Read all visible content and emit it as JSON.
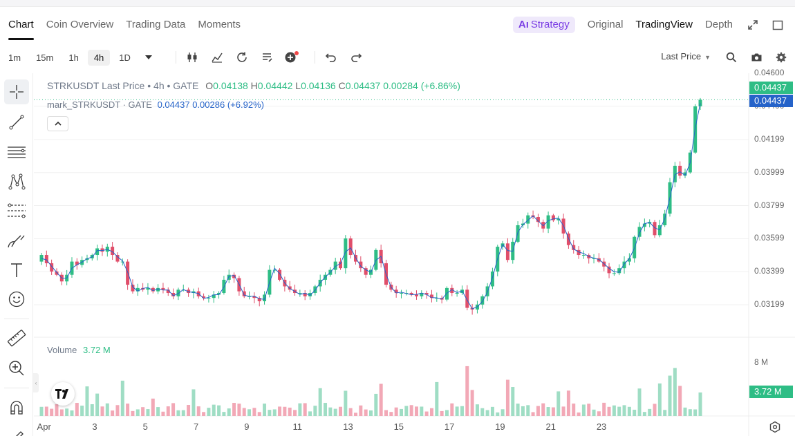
{
  "tabs": {
    "left": [
      "Chart",
      "Coin Overview",
      "Trading Data",
      "Moments"
    ],
    "strategy": "Strategy",
    "strategy_prefix": "Aı",
    "right": [
      "Original",
      "TradingView",
      "Depth"
    ]
  },
  "toolbar": {
    "timeframes": [
      "1m",
      "15m",
      "1h",
      "4h",
      "1D"
    ],
    "active_timeframe": "4h",
    "price_type": "Last Price"
  },
  "legend": {
    "symbol": "STRKUSDT Last Price",
    "interval": "4h",
    "exchange": "GATE",
    "o_label": "O",
    "o": "0.04138",
    "h_label": "H",
    "h": "0.04442",
    "l_label": "L",
    "l": "0.04136",
    "c_label": "C",
    "c": "0.04437",
    "change": "0.00284",
    "change_pct": "(+6.86%)",
    "mark_symbol": "mark_STRKUSDT",
    "mark_exchange": "GATE",
    "mark_price": "0.04437",
    "mark_change": "0.00286",
    "mark_change_pct": "(+6.92%)"
  },
  "volume": {
    "label": "Volume",
    "value": "3.72 M",
    "axis_label": "8 M",
    "tag": "3.72 M"
  },
  "price_tags": {
    "last": "0.04437",
    "mark": "0.04437"
  },
  "colors": {
    "up": "#2ebd85",
    "down": "#e04e6a",
    "mark_line": "#2563c9",
    "vol_up": "#9fddc4",
    "vol_down": "#f2a8b6",
    "strategy": "#7b3fe4"
  },
  "chart_data": {
    "type": "candlestick",
    "price_axis_ticks": [
      "0.04600",
      "0.04400",
      "0.04199",
      "0.03999",
      "0.03799",
      "0.03599",
      "0.03399",
      "0.03199"
    ],
    "ylim": [
      0.0309,
      0.046
    ],
    "x_tick_labels": [
      "Apr",
      "3",
      "5",
      "7",
      "9",
      "11",
      "13",
      "15",
      "17",
      "19",
      "21",
      "23"
    ],
    "x_tick_positions": [
      0.5,
      10.5,
      20.5,
      30.5,
      40.5,
      50.5,
      60.5,
      70.5,
      80.5,
      90.5,
      100.5,
      110.5
    ],
    "closes": [
      0.035,
      0.0345,
      0.034,
      0.0338,
      0.0334,
      0.0338,
      0.0346,
      0.0344,
      0.0347,
      0.0348,
      0.035,
      0.0354,
      0.0352,
      0.0355,
      0.035,
      0.0346,
      0.0346,
      0.0332,
      0.0328,
      0.033,
      0.0329,
      0.033,
      0.0328,
      0.033,
      0.0329,
      0.0327,
      0.0325,
      0.0329,
      0.0329,
      0.0327,
      0.0328,
      0.0325,
      0.0324,
      0.0324,
      0.0326,
      0.0327,
      0.0335,
      0.0338,
      0.0336,
      0.0328,
      0.0325,
      0.0325,
      0.0324,
      0.0322,
      0.0326,
      0.0341,
      0.0341,
      0.0335,
      0.0331,
      0.0329,
      0.0327,
      0.0327,
      0.0325,
      0.0327,
      0.0331,
      0.0335,
      0.0338,
      0.0341,
      0.0346,
      0.0342,
      0.036,
      0.035,
      0.0346,
      0.0342,
      0.0338,
      0.0341,
      0.0353,
      0.0345,
      0.0332,
      0.0329,
      0.0327,
      0.0327,
      0.0327,
      0.0326,
      0.0325,
      0.0327,
      0.0326,
      0.0324,
      0.0324,
      0.0323,
      0.033,
      0.0327,
      0.0327,
      0.0329,
      0.0318,
      0.0317,
      0.032,
      0.0325,
      0.0331,
      0.034,
      0.0355,
      0.0357,
      0.0347,
      0.0358,
      0.0368,
      0.0369,
      0.0374,
      0.0373,
      0.037,
      0.0366,
      0.0374,
      0.0371,
      0.0372,
      0.0363,
      0.0356,
      0.0353,
      0.035,
      0.035,
      0.0348,
      0.0348,
      0.0346,
      0.0343,
      0.0339,
      0.0339,
      0.0342,
      0.0346,
      0.0348,
      0.0361,
      0.0367,
      0.0369,
      0.037,
      0.0362,
      0.0368,
      0.0375,
      0.0394,
      0.0404,
      0.0398,
      0.04,
      0.0412,
      0.044,
      0.0444
    ],
    "volume_note": "volume bars shown per candle, scale 0-8 M",
    "last_volume": 3.72
  }
}
